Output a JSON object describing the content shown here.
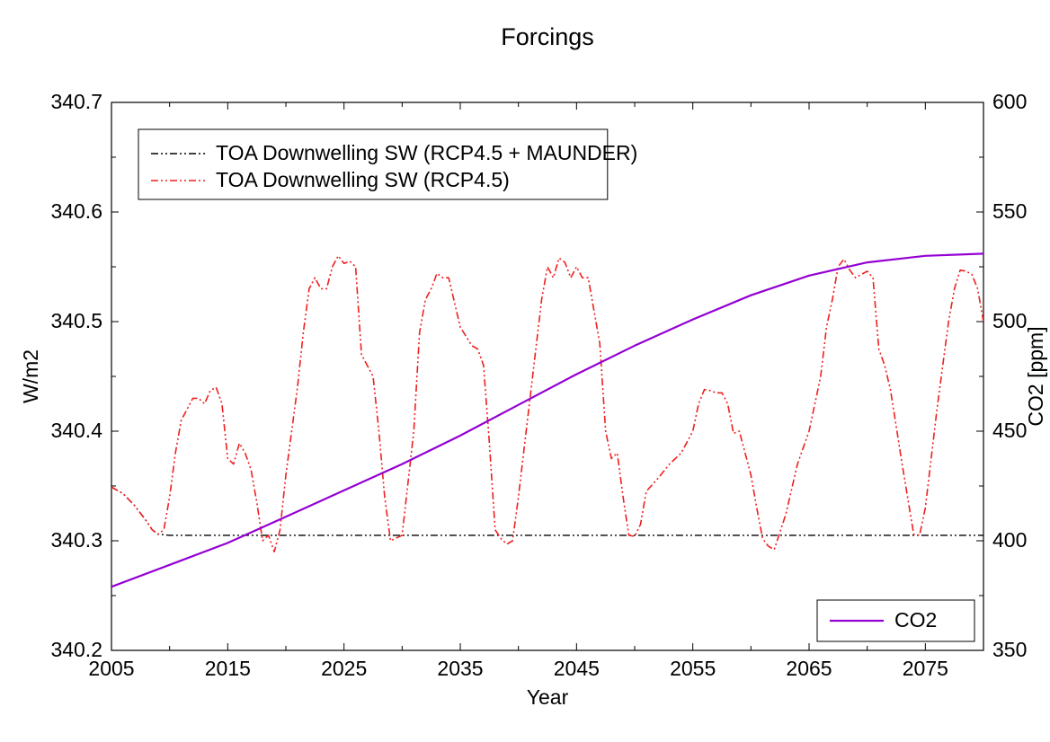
{
  "title": "Forcings",
  "title_fontsize": 27,
  "title_color": "#000000",
  "xlabel": "Year",
  "ylabel_left": "W/m2",
  "ylabel_right": "CO2 [ppm]",
  "label_fontsize": 23,
  "tick_fontsize": 23,
  "border_color": "#000000",
  "background_color": "#ffffff",
  "xlim": [
    2005,
    2080
  ],
  "xtick_step": 10,
  "xticks": [
    2005,
    2015,
    2025,
    2035,
    2045,
    2055,
    2065,
    2075
  ],
  "ylim_left": [
    340.2,
    340.7
  ],
  "ytick_step_left": 0.1,
  "yticks_left": [
    340.2,
    340.3,
    340.4,
    340.5,
    340.6,
    340.7
  ],
  "ylim_right": [
    350,
    600
  ],
  "ytick_step_right": 50,
  "yticks_right": [
    350,
    400,
    450,
    500,
    550,
    600
  ],
  "legend_top": {
    "items": [
      {
        "label": "TOA Downwelling SW (RCP4.5 + MAUNDER)",
        "color": "#000000",
        "style": "dashdotdot"
      },
      {
        "label": "TOA Downwelling SW (RCP4.5)",
        "color": "#ee2020",
        "style": "dashdotdot"
      }
    ],
    "fontsize": 23,
    "border_color": "#000000"
  },
  "legend_bottom": {
    "items": [
      {
        "label": "CO2",
        "color": "#9400d3",
        "style": "solid"
      }
    ],
    "fontsize": 23,
    "border_color": "#000000"
  },
  "series": {
    "maunder": {
      "label": "TOA Downwelling SW (RCP4.5 + MAUNDER)",
      "color": "#000000",
      "dash": "8 3 2 3 2 3",
      "width": 1.4,
      "axis": "left",
      "x": [
        2005,
        2006,
        2007,
        2008,
        2008.5,
        2009,
        2010,
        2012,
        2015,
        2020,
        2030,
        2040,
        2050,
        2060,
        2070,
        2080
      ],
      "y": [
        340.349,
        340.343,
        340.332,
        340.318,
        340.31,
        340.306,
        340.305,
        340.305,
        340.305,
        340.305,
        340.305,
        340.305,
        340.305,
        340.305,
        340.305,
        340.305
      ]
    },
    "rcp45": {
      "label": "TOA Downwelling SW (RCP4.5)",
      "color": "#ee2020",
      "dash": "8 3 2 3 2 3",
      "width": 1.6,
      "axis": "left",
      "x": [
        2005,
        2006,
        2007,
        2008,
        2008.5,
        2009,
        2009.5,
        2010,
        2010.5,
        2011,
        2011.5,
        2012,
        2012.5,
        2013,
        2013.5,
        2014,
        2014.5,
        2015,
        2015.5,
        2016,
        2016.5,
        2017,
        2017.5,
        2018,
        2018.5,
        2019,
        2019.5,
        2020,
        2021,
        2021.5,
        2022,
        2022.5,
        2023,
        2023.5,
        2024,
        2024.5,
        2025,
        2025.5,
        2026,
        2026.5,
        2027,
        2027.5,
        2028,
        2028.5,
        2029,
        2030,
        2031,
        2031.5,
        2032,
        2032.5,
        2033,
        2033.5,
        2034,
        2035,
        2036,
        2036.5,
        2037,
        2037.5,
        2038,
        2038.5,
        2039,
        2039.5,
        2040,
        2041,
        2042,
        2042.5,
        2043,
        2043.5,
        2044,
        2044.5,
        2045,
        2045.5,
        2046,
        2047,
        2047.5,
        2048,
        2048.5,
        2049,
        2049.5,
        2050,
        2050.5,
        2051,
        2052,
        2053,
        2054,
        2055,
        2055.5,
        2056,
        2056.5,
        2057,
        2057.5,
        2058,
        2058.5,
        2059,
        2059.5,
        2060,
        2060.5,
        2061,
        2061.5,
        2062,
        2063,
        2064,
        2065,
        2066,
        2066.5,
        2067,
        2067.5,
        2068,
        2068.5,
        2069,
        2069.5,
        2070,
        2070.5,
        2071,
        2071.5,
        2072,
        2073,
        2074,
        2074.5,
        2075,
        2076,
        2076.5,
        2077,
        2077.5,
        2078,
        2078.5,
        2079,
        2079.5,
        2080
      ],
      "y": [
        340.349,
        340.343,
        340.332,
        340.318,
        340.31,
        340.306,
        340.31,
        340.34,
        340.38,
        340.41,
        340.42,
        340.43,
        340.43,
        340.425,
        340.437,
        340.44,
        340.425,
        340.375,
        340.37,
        340.389,
        340.38,
        340.365,
        340.335,
        340.3,
        340.305,
        340.29,
        340.31,
        340.36,
        340.44,
        340.49,
        340.53,
        340.54,
        340.53,
        340.53,
        340.55,
        340.56,
        340.553,
        340.555,
        340.55,
        340.47,
        340.46,
        340.45,
        340.4,
        340.34,
        340.3,
        340.305,
        340.4,
        340.49,
        340.52,
        340.53,
        340.544,
        340.54,
        340.54,
        340.495,
        340.478,
        340.475,
        340.46,
        340.39,
        340.31,
        340.302,
        340.297,
        340.3,
        340.34,
        340.43,
        340.52,
        340.55,
        340.54,
        340.558,
        340.554,
        340.54,
        340.55,
        340.54,
        340.54,
        340.48,
        340.4,
        340.375,
        340.38,
        340.34,
        340.305,
        340.304,
        340.315,
        340.345,
        340.357,
        340.37,
        340.38,
        340.4,
        340.425,
        340.438,
        340.437,
        340.435,
        340.435,
        340.425,
        340.398,
        340.4,
        340.38,
        340.36,
        340.33,
        340.302,
        340.295,
        340.292,
        340.324,
        340.37,
        340.4,
        340.45,
        340.495,
        340.52,
        340.55,
        340.557,
        340.547,
        340.54,
        340.543,
        340.546,
        340.54,
        340.475,
        340.46,
        340.438,
        340.37,
        340.306,
        340.305,
        340.33,
        340.42,
        340.46,
        340.5,
        340.53,
        340.547,
        340.546,
        340.543,
        340.53,
        340.5
      ]
    },
    "co2": {
      "label": "CO2",
      "color": "#9400d3",
      "dash": "",
      "width": 2.2,
      "axis": "right",
      "x": [
        2005,
        2010,
        2015,
        2020,
        2025,
        2030,
        2035,
        2040,
        2045,
        2050,
        2055,
        2060,
        2065,
        2070,
        2075,
        2080
      ],
      "y": [
        379,
        389,
        399,
        411,
        423,
        435,
        448,
        462,
        476,
        489,
        501,
        512,
        521,
        527,
        530,
        531
      ]
    }
  }
}
